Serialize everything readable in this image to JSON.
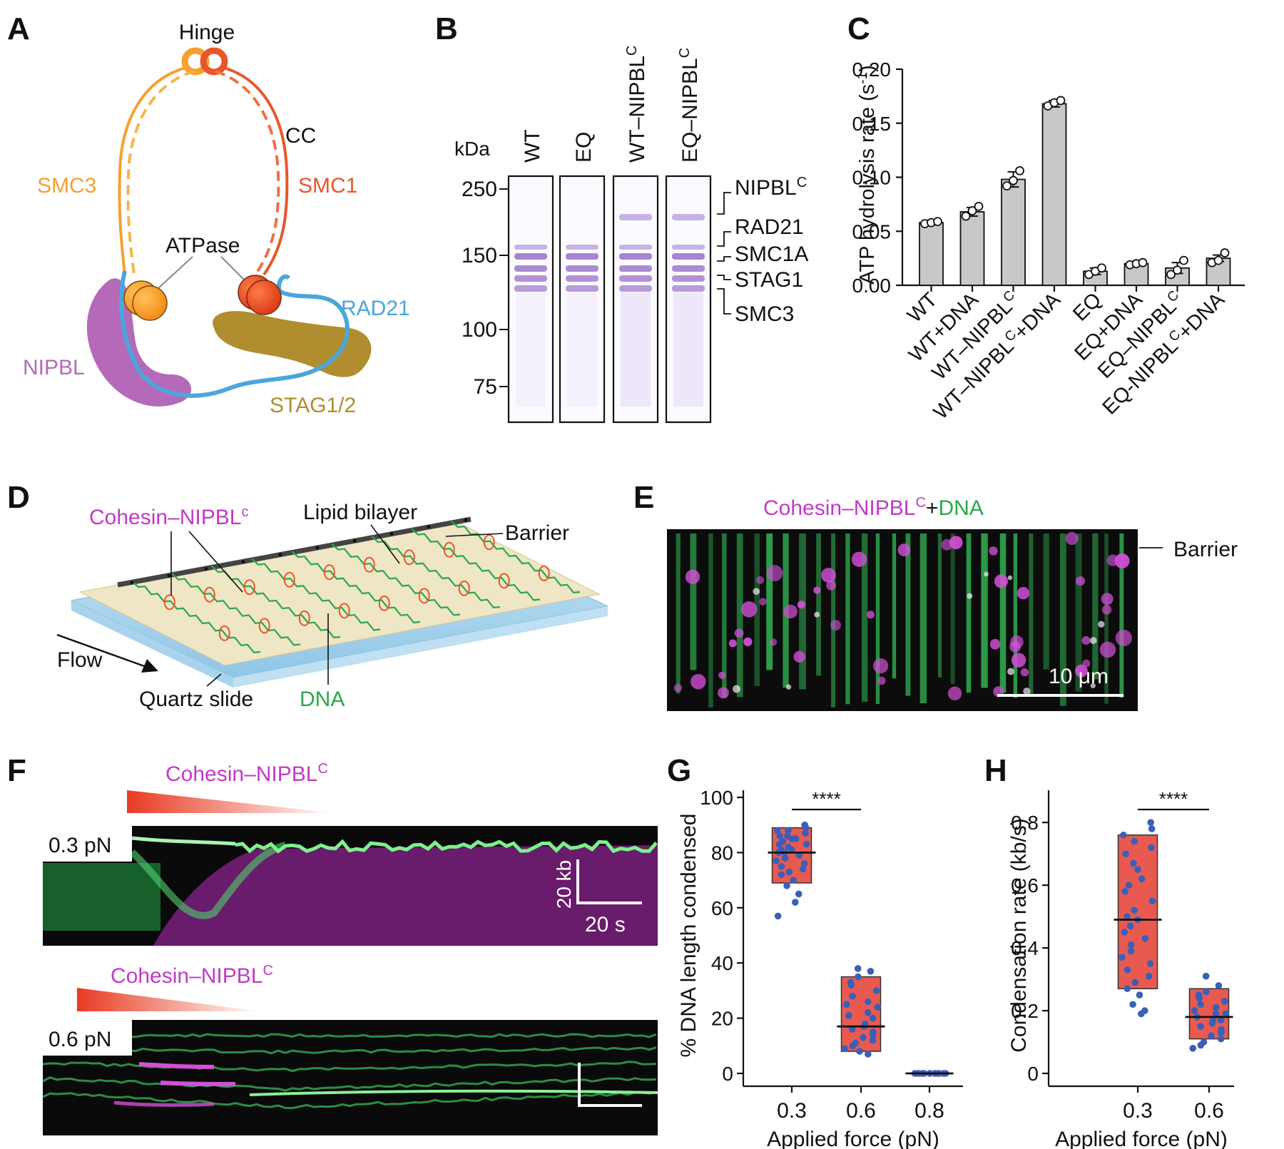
{
  "colors": {
    "smc3": "#f5a030",
    "smc1": "#e8572a",
    "rad21": "#4aa6dd",
    "nipbl": "#b46ab8",
    "stag": "#b08d2e",
    "magenta": "#c13ac8",
    "green": "#2aa84a",
    "bar": "#c8c8c8",
    "box": "#e85a50",
    "dot": "#3b5fb8"
  },
  "panelA": {
    "label": "A",
    "hinge": "Hinge",
    "cc": "CC",
    "smc3": "SMC3",
    "smc1": "SMC1",
    "atpase": "ATPase",
    "rad21": "RAD21",
    "nipbl": "NIPBL",
    "stag": "STAG1/2"
  },
  "panelB": {
    "label": "B",
    "kda": "kDa",
    "lanes": [
      "WT",
      "EQ",
      "WT–NIPBL",
      "EQ–NIPBL"
    ],
    "lane_sup": [
      "",
      "",
      "C",
      "C"
    ],
    "markers": [
      "250",
      "150",
      "100",
      "75"
    ],
    "bands": [
      "NIPBL",
      "RAD21",
      "SMC1A",
      "STAG1",
      "SMC3"
    ],
    "band_sup": [
      "C",
      "",
      "",
      "",
      ""
    ]
  },
  "panelC": {
    "label": "C",
    "chart_data": {
      "type": "bar",
      "ylabel": "ATP hydrolysis rate (s",
      "ylabel_sup": "-1",
      "ylabel_end": ")",
      "categories": [
        "WT",
        "WT+DNA",
        "WT–NIPBL",
        "WT–NIPBL",
        "EQ",
        "EQ+DNA",
        "EQ–NIPBL",
        "EQ-NIPBL"
      ],
      "cat_sup": [
        "",
        "",
        "C",
        "C",
        "",
        "",
        "C",
        "C"
      ],
      "cat_tail": [
        "",
        "",
        "",
        "+DNA",
        "",
        "",
        "",
        "+DNA"
      ],
      "values": [
        0.058,
        0.068,
        0.098,
        0.168,
        0.013,
        0.02,
        0.016,
        0.025
      ],
      "errors": [
        0.002,
        0.004,
        0.007,
        0.003,
        0.003,
        0.001,
        0.005,
        0.003
      ],
      "points": [
        [
          0.057,
          0.058,
          0.059
        ],
        [
          0.064,
          0.069,
          0.073
        ],
        [
          0.092,
          0.097,
          0.106
        ],
        [
          0.166,
          0.169,
          0.171
        ],
        [
          0.01,
          0.013,
          0.016
        ],
        [
          0.019,
          0.02,
          0.021
        ],
        [
          0.01,
          0.014,
          0.023
        ],
        [
          0.021,
          0.023,
          0.03
        ]
      ],
      "yticks": [
        "0.00",
        "0.05",
        "0.10",
        "0.15",
        "0.20"
      ],
      "ylim": [
        0,
        0.2
      ]
    }
  },
  "panelD": {
    "label": "D",
    "cohesin": "Cohesin–NIPBL",
    "cohesin_sup": "c",
    "lipid": "Lipid bilayer",
    "barrier": "Barrier",
    "flow": "Flow",
    "quartz": "Quartz slide",
    "dna": "DNA"
  },
  "panelE": {
    "label": "E",
    "title_a": "Cohesin–NIPBL",
    "title_sup": "C",
    "title_b": "+",
    "title_c": "DNA",
    "barrier": "Barrier",
    "scale": "10 μm"
  },
  "panelF": {
    "label": "F",
    "top_title": "Cohesin–NIPBL",
    "top_sup": "C",
    "top_force": "0.3 pN",
    "scale_y": "20 kb",
    "scale_x": "20 s",
    "bottom_title": "Cohesin–NIPBL",
    "bottom_sup": "C",
    "bottom_force": "0.6 pN"
  },
  "panelG": {
    "label": "G",
    "sig": "****",
    "chart_data": {
      "type": "box-scatter",
      "ylabel": "% DNA length condensed",
      "xlabel": "Applied force (pN)",
      "categories": [
        "0.3",
        "0.6",
        "0.8"
      ],
      "median": [
        80,
        17,
        0
      ],
      "q1": [
        69,
        8,
        0
      ],
      "q3": [
        89,
        35,
        0
      ],
      "points": [
        [
          90,
          89,
          88,
          88,
          87,
          86,
          86,
          85,
          85,
          84,
          83,
          83,
          82,
          81,
          81,
          80,
          80,
          79,
          78,
          78,
          77,
          76,
          75,
          74,
          73,
          72,
          70,
          68,
          65,
          62,
          57
        ],
        [
          38,
          37,
          35,
          33,
          32,
          30,
          28,
          26,
          25,
          24,
          22,
          21,
          20,
          18,
          17,
          16,
          15,
          14,
          13,
          12,
          11,
          10,
          9,
          8,
          7
        ],
        [
          0,
          0,
          0,
          0,
          0,
          0,
          0,
          0,
          0,
          0,
          0,
          0,
          0,
          0,
          0,
          0
        ]
      ],
      "yticks": [
        "0",
        "20",
        "40",
        "60",
        "80",
        "100"
      ],
      "ylim": [
        0,
        100
      ]
    }
  },
  "panelH": {
    "label": "H",
    "sig": "****",
    "chart_data": {
      "type": "box-scatter",
      "ylabel": "Condensation rate (kb/s)",
      "xlabel": "Applied force (pN)",
      "categories": [
        "0.3",
        "0.6"
      ],
      "median": [
        0.49,
        0.18
      ],
      "q1": [
        0.27,
        0.11
      ],
      "q3": [
        0.76,
        0.27
      ],
      "points": [
        [
          0.8,
          0.78,
          0.76,
          0.74,
          0.72,
          0.7,
          0.67,
          0.65,
          0.62,
          0.6,
          0.58,
          0.55,
          0.52,
          0.5,
          0.49,
          0.47,
          0.45,
          0.43,
          0.41,
          0.39,
          0.37,
          0.35,
          0.33,
          0.31,
          0.29,
          0.27,
          0.25,
          0.22,
          0.2,
          0.19
        ],
        [
          0.31,
          0.28,
          0.26,
          0.25,
          0.24,
          0.23,
          0.22,
          0.21,
          0.2,
          0.19,
          0.19,
          0.18,
          0.17,
          0.17,
          0.16,
          0.15,
          0.14,
          0.13,
          0.12,
          0.11,
          0.1,
          0.09,
          0.08
        ]
      ],
      "yticks": [
        "0",
        "0.2",
        "0.4",
        "0.6",
        "0.8"
      ],
      "ylim": [
        0,
        0.88
      ]
    }
  }
}
